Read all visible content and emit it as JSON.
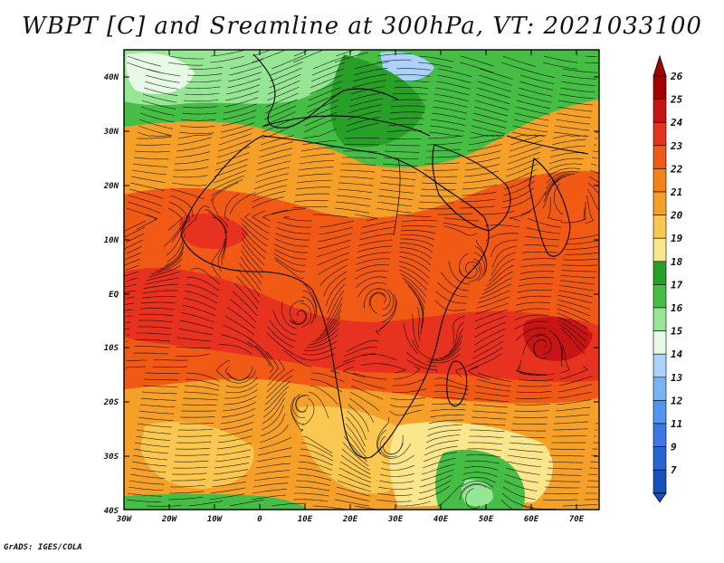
{
  "title": "WBPT [C] and Sreamline at 300hPa, VT: 2021033100",
  "credit": "GrADS: IGES/COLA",
  "map": {
    "lat_labels": [
      "40N",
      "30N",
      "20N",
      "10N",
      "EQ",
      "10S",
      "20S",
      "30S",
      "40S"
    ],
    "lon_labels": [
      "30W",
      "20W",
      "10W",
      "0",
      "10E",
      "20E",
      "30E",
      "40E",
      "50E",
      "60E",
      "70E"
    ],
    "lon_range": [
      -30,
      75
    ],
    "lat_range": [
      -40,
      45
    ]
  },
  "colorbar": {
    "levels": [
      "26",
      "25",
      "24",
      "23",
      "22",
      "21",
      "20",
      "19",
      "18",
      "17",
      "16",
      "15",
      "14",
      "13",
      "12",
      "11",
      "9",
      "7"
    ],
    "colors": [
      "#a50000",
      "#c81414",
      "#e6321e",
      "#f05a14",
      "#f58214",
      "#f5a028",
      "#fac850",
      "#fae68c",
      "#28a028",
      "#46be46",
      "#96e696",
      "#e6fae6",
      "#aad2fa",
      "#78b4f5",
      "#5096f0",
      "#3c78e6",
      "#2864d2",
      "#1450be"
    ]
  },
  "colors": {
    "warm": "#f05a14",
    "orange": "#f5a028",
    "yellow": "#fac850",
    "green": "#46be46",
    "light_green": "#96e696",
    "pale_blue": "#e6fae6"
  }
}
